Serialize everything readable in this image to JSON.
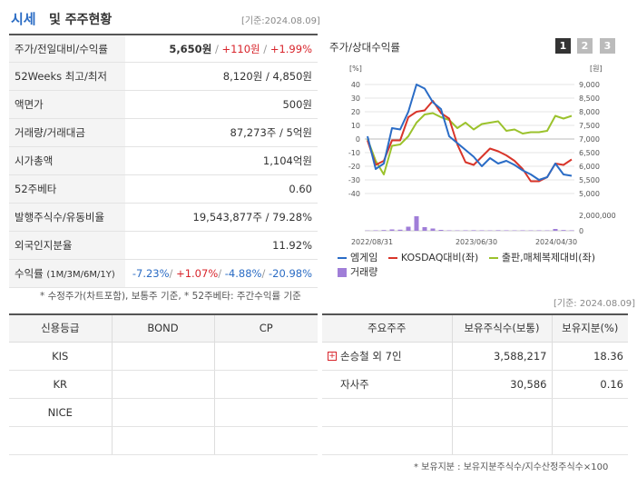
{
  "header": {
    "title_main": "시세",
    "title_rest": "및 주주현황",
    "base_date": "[기준:2024.08.09]"
  },
  "price_table": {
    "rows": [
      {
        "label": "주가/전일대비/수익률",
        "price": "5,650원",
        "change": "+110원",
        "rate": "+1.99%"
      },
      {
        "label": "52Weeks 최고/최저",
        "value": "8,120원 / 4,850원"
      },
      {
        "label": "액면가",
        "value": "500원"
      },
      {
        "label": "거래량/거래대금",
        "value": "87,273주 / 5억원"
      },
      {
        "label": "시가총액",
        "value": "1,104억원"
      },
      {
        "label": "52주베타",
        "value": "0.60"
      },
      {
        "label": "발행주식수/유동비율",
        "value": "19,543,877주 / 79.28%"
      },
      {
        "label": "외국인지분율",
        "value": "11.92%"
      },
      {
        "label": "수익률",
        "label_small": "(1M/3M/6M/1Y)",
        "r1": "-7.23%",
        "r2": "+1.07%",
        "r3": "-4.88%",
        "r4": "-20.98%"
      }
    ],
    "note": "* 수정주가(차트포함), 보통주 기준, * 52주베타: 주간수익률 기준"
  },
  "chart_panel": {
    "title": "주가/상대수익률",
    "pages": [
      "1",
      "2",
      "3"
    ],
    "active_page": "1",
    "legend": [
      "엠게임",
      "KOSDAQ대비(좌)",
      "출판,매체복제대비(좌)",
      "거래량"
    ]
  },
  "chart_data": {
    "type": "line",
    "left_unit": "[%]",
    "right_unit": "[원]",
    "left_ticks": [
      "40",
      "30",
      "20",
      "10",
      "0",
      "-10",
      "-20",
      "-30",
      "-40"
    ],
    "left_range": [
      -40,
      40
    ],
    "right_ticks": [
      "9,000",
      "8,500",
      "8,000",
      "7,500",
      "7,000",
      "6,500",
      "6,000",
      "5,500",
      "5,000"
    ],
    "right_range": [
      5000,
      9000
    ],
    "volume_tick": "2,000,000",
    "volume_tick_zero": "0",
    "x_ticks": [
      "2022/08/31",
      "2023/06/30",
      "2024/04/30"
    ],
    "colors": {
      "price": "#2a6cc6",
      "kosdaq": "#d8352a",
      "sector": "#9bc22c",
      "volume": "#a07ed8"
    },
    "series": [
      {
        "name": "엠게임",
        "axis": "left",
        "values": [
          2,
          -22,
          -18,
          8,
          7,
          20,
          40,
          37,
          27,
          22,
          2,
          -3,
          -8,
          -13,
          -20,
          -14,
          -18,
          -16,
          -19,
          -23,
          -26,
          -30,
          -28,
          -18,
          -26,
          -27
        ]
      },
      {
        "name": "KOSDAQ대비(좌)",
        "axis": "left",
        "values": [
          -1,
          -19,
          -16,
          -1,
          -1,
          16,
          20,
          21,
          28,
          19,
          15,
          -4,
          -17,
          -19,
          -13,
          -7,
          -9,
          -12,
          -16,
          -22,
          -31,
          -31,
          -28,
          -18,
          -19,
          -15
        ]
      },
      {
        "name": "출판,매체복제대비(좌)",
        "axis": "left",
        "values": [
          0,
          -16,
          -26,
          -5,
          -4,
          2,
          12,
          18,
          19,
          16,
          14,
          8,
          12,
          7,
          11,
          12,
          13,
          6,
          7,
          4,
          5,
          5,
          6,
          17,
          15,
          17
        ]
      }
    ],
    "volume": [
      0.03,
      0.05,
      0.08,
      0.15,
      0.12,
      0.45,
      1.6,
      0.4,
      0.25,
      0.1,
      0.05,
      0.04,
      0.05,
      0.06,
      0.05,
      0.04,
      0.06,
      0.05,
      0.04,
      0.05,
      0.04,
      0.05,
      0.04,
      0.2,
      0.08,
      0.05
    ],
    "volume_max": 2000000,
    "volume_unit": "millions"
  },
  "credit_table": {
    "headers": [
      "신용등급",
      "BOND",
      "CP"
    ],
    "rows": [
      [
        "KIS",
        "",
        ""
      ],
      [
        "KR",
        "",
        ""
      ],
      [
        "NICE",
        "",
        ""
      ],
      [
        "",
        "",
        ""
      ]
    ]
  },
  "holders_table": {
    "base_date": "[기준: 2024.08.09]",
    "headers": [
      "주요주주",
      "보유주식수(보통)",
      "보유지분(%)"
    ],
    "rows": [
      {
        "name": "손승철 외 7인",
        "expandable": true,
        "shares": "3,588,217",
        "pct": "18.36"
      },
      {
        "name": "자사주",
        "expandable": false,
        "shares": "30,586",
        "pct": "0.16"
      },
      {
        "name": "",
        "shares": "",
        "pct": ""
      },
      {
        "name": "",
        "shares": "",
        "pct": ""
      }
    ],
    "note": "* 보유지분 : 보유지분주식수/지수산정주식수×100"
  }
}
